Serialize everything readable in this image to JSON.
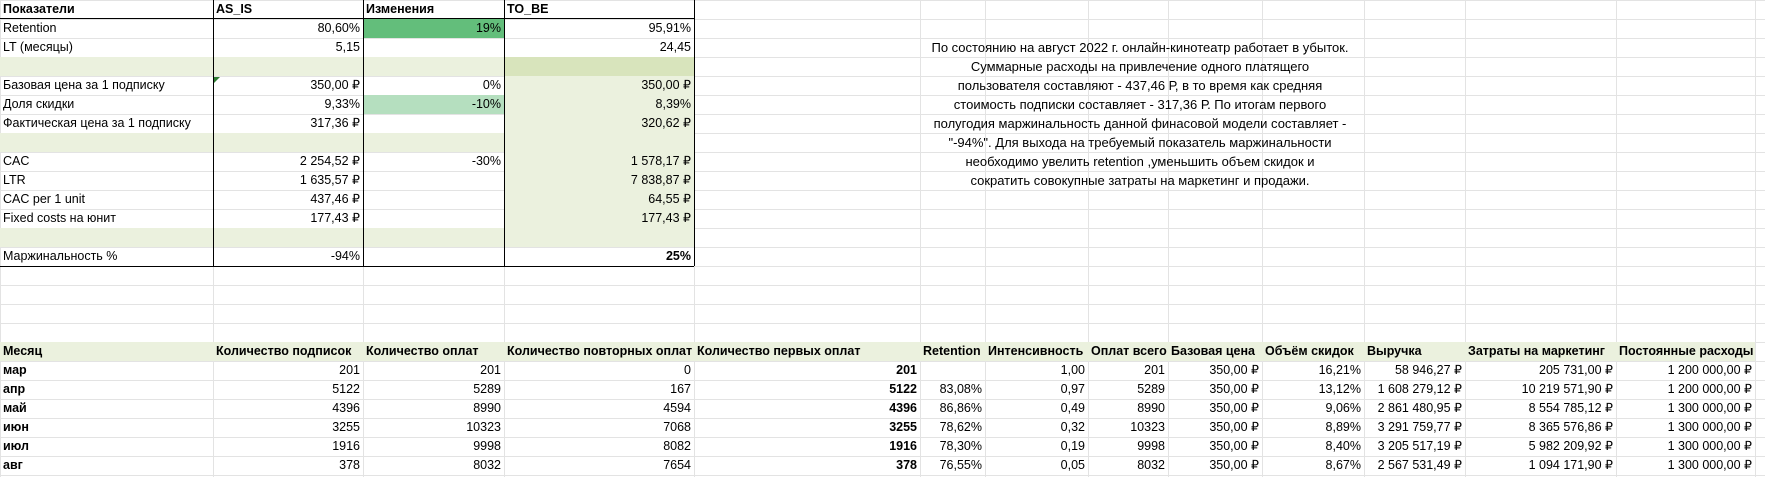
{
  "top_table": {
    "headers": [
      "Показатели",
      "AS_IS",
      "Изменения",
      "TO_BE"
    ],
    "rows": [
      {
        "label": "Retention",
        "as_is": "80,60%",
        "change": "19%",
        "to_be": "95,91%"
      },
      {
        "label": "LT (месяцы)",
        "as_is": "5,15",
        "change": "",
        "to_be": "24,45"
      },
      {
        "label": "",
        "as_is": "",
        "change": "",
        "to_be": ""
      },
      {
        "label": "Базовая цена за 1 подписку",
        "as_is": "350,00 ₽",
        "change": "0%",
        "to_be": "350,00 ₽"
      },
      {
        "label": "Доля скидки",
        "as_is": "9,33%",
        "change": "-10%",
        "to_be": "8,39%"
      },
      {
        "label": "Фактическая цена за 1 подписку",
        "as_is": "317,36 ₽",
        "change": "",
        "to_be": "320,62 ₽"
      },
      {
        "label": "",
        "as_is": "",
        "change": "",
        "to_be": ""
      },
      {
        "label": "CAC",
        "as_is": "2 254,52 ₽",
        "change": "-30%",
        "to_be": "1 578,17 ₽"
      },
      {
        "label": "LTR",
        "as_is": "1 635,57 ₽",
        "change": "",
        "to_be": "7 838,87 ₽"
      },
      {
        "label": "CAC per 1 unit",
        "as_is": "437,46 ₽",
        "change": "",
        "to_be": "64,55 ₽"
      },
      {
        "label": "Fixed costs на юнит",
        "as_is": "177,43 ₽",
        "change": "",
        "to_be": "177,43 ₽"
      },
      {
        "label": "",
        "as_is": "",
        "change": "",
        "to_be": ""
      },
      {
        "label": "Маржинальность %",
        "as_is": "-94%",
        "change": "",
        "to_be": "25%"
      }
    ]
  },
  "note_lines": [
    "По состоянию на август 2022 г. онлайн-кинотеатр работает в убыток.",
    "Суммарные расходы на привлечение одного платящего",
    "пользователя составляют - 437,46 Р, в то время как средняя",
    "стоимость подписки составляет - 317,36 Р. По итогам  первого",
    "полугодия маржинальность данной финасовой модели составляет -",
    "\"-94%\". Для выхода на требуемый показатель маржинальности",
    "необходимо увелить retention ,уменьшить объем скидок и",
    "сократить совокупные затраты на маркетинг  и продажи."
  ],
  "bottom_table": {
    "headers": [
      "Месяц",
      "Количество подписок",
      "Количество оплат",
      "Количество повторных оплат",
      "Количество первых оплат",
      "Retention",
      "Интенсивность",
      "Оплат всего",
      "Базовая цена",
      "Объём скидок",
      "Выручка",
      "Затраты на маркетинг",
      "Постоянные расходы"
    ],
    "rows": [
      [
        "мар",
        "201",
        "201",
        "0",
        "201",
        "",
        "1,00",
        "201",
        "350,00 ₽",
        "16,21%",
        "58 946,27 ₽",
        "205 731,00 ₽",
        "1 200 000,00 ₽"
      ],
      [
        "апр",
        "5122",
        "5289",
        "167",
        "5122",
        "83,08%",
        "0,97",
        "5289",
        "350,00 ₽",
        "13,12%",
        "1 608 279,12 ₽",
        "10 219 571,90 ₽",
        "1 200 000,00 ₽"
      ],
      [
        "май",
        "4396",
        "8990",
        "4594",
        "4396",
        "86,86%",
        "0,49",
        "8990",
        "350,00 ₽",
        "9,06%",
        "2 861 480,95 ₽",
        "8 554 785,12 ₽",
        "1 300 000,00 ₽"
      ],
      [
        "июн",
        "3255",
        "10323",
        "7068",
        "3255",
        "78,62%",
        "0,32",
        "10323",
        "350,00 ₽",
        "8,89%",
        "3 291 759,77 ₽",
        "8 365 576,86 ₽",
        "1 300 000,00 ₽"
      ],
      [
        "июл",
        "1916",
        "9998",
        "8082",
        "1916",
        "78,30%",
        "0,19",
        "9998",
        "350,00 ₽",
        "8,40%",
        "3 205 517,19 ₽",
        "5 982 209,92 ₽",
        "1 300 000,00 ₽"
      ],
      [
        "авг",
        "378",
        "8032",
        "7654",
        "378",
        "76,55%",
        "0,05",
        "8032",
        "350,00 ₽",
        "8,67%",
        "2 567 531,49 ₽",
        "1 094 171,90 ₽",
        "1 300 000,00 ₽"
      ]
    ]
  },
  "colors": {
    "green_dark": "#63be7b",
    "green_light": "#b5dfbf",
    "band": "#ebf1de",
    "gridline": "#e3e3e3"
  }
}
